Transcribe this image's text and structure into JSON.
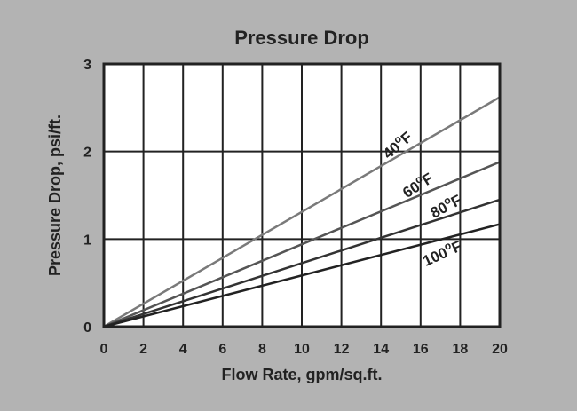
{
  "chart_data": {
    "type": "line",
    "title": "Pressure Drop",
    "xlabel": "Flow Rate, gpm/sq.ft.",
    "ylabel": "Pressure Drop, psi/ft.",
    "xlim": [
      0,
      20
    ],
    "ylim": [
      0,
      3
    ],
    "x_ticks": [
      0,
      2,
      4,
      6,
      8,
      10,
      12,
      14,
      16,
      18,
      20
    ],
    "y_ticks": [
      0,
      1,
      2,
      3
    ],
    "grid": true,
    "series": [
      {
        "name": "40",
        "unit": "F",
        "x": [
          0,
          20
        ],
        "values": [
          0,
          2.62
        ],
        "color": "#7a7a7a",
        "label_at": 15
      },
      {
        "name": "60",
        "unit": "F",
        "x": [
          0,
          20
        ],
        "values": [
          0,
          1.88
        ],
        "color": "#555555",
        "label_at": 16
      },
      {
        "name": "80",
        "unit": "F",
        "x": [
          0,
          20
        ],
        "values": [
          0,
          1.45
        ],
        "color": "#333333",
        "label_at": 17.4
      },
      {
        "name": "100",
        "unit": "F",
        "x": [
          0,
          20
        ],
        "values": [
          0,
          1.17
        ],
        "color": "#222222",
        "label_at": 17.2
      }
    ],
    "background": "#b3b3b3",
    "plot_background": "#ffffff"
  }
}
